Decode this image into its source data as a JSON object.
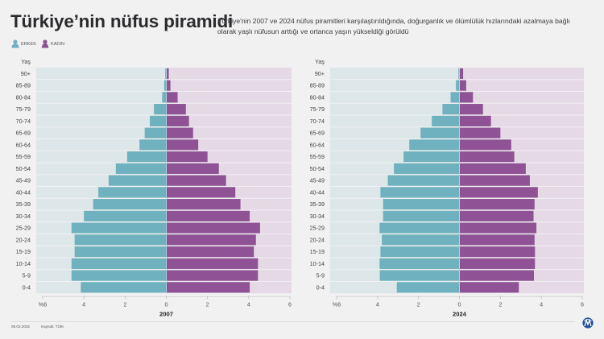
{
  "header": {
    "title": "Türkiye’nin nüfus piramidi",
    "subtitle": "Türkiye'nin 2007 ve 2024 nüfus piramitleri karşılaştırıldığında, doğurganlık ve ölümlülük hızlarındaki azalmaya bağlı olarak yaşlı nüfusun arttığı ve ortanca yaşın yükseldiği görüldü"
  },
  "legend": [
    {
      "label": "ERKEK",
      "icon": "male-person-icon",
      "color": "#6fb1be"
    },
    {
      "label": "KADIN",
      "icon": "female-person-icon",
      "color": "#8e4f94"
    }
  ],
  "colors": {
    "male": "#6fb1be",
    "female": "#8e5295",
    "male_bg": "#dde6e8",
    "female_bg": "#e6d9e6",
    "divider": "#a9d7de",
    "brand": "#1f4e9a"
  },
  "chart_data": [
    {
      "type": "bar",
      "orientation": "horizontal-pyramid",
      "title": "2007",
      "xlabel": "2007",
      "ylabel": "Yaş",
      "xlim": [
        -6,
        6
      ],
      "x_ticks": [
        "%6",
        "4",
        "2",
        "0",
        "2",
        "4",
        "6"
      ],
      "categories": [
        "90+",
        "85-89",
        "80-84",
        "75-79",
        "70-74",
        "65-69",
        "60-64",
        "55-59",
        "50-54",
        "45-49",
        "40-44",
        "35-39",
        "30-34",
        "25-29",
        "20-24",
        "15-19",
        "10-14",
        "5-9",
        "0-4"
      ],
      "series": [
        {
          "name": "ERKEK",
          "values": [
            0.05,
            0.1,
            0.2,
            0.6,
            0.8,
            1.05,
            1.3,
            1.9,
            2.45,
            2.8,
            3.3,
            3.55,
            4.0,
            4.6,
            4.45,
            4.45,
            4.6,
            4.6,
            4.15
          ]
        },
        {
          "name": "KADIN",
          "values": [
            0.12,
            0.2,
            0.55,
            0.95,
            1.1,
            1.3,
            1.55,
            2.0,
            2.55,
            2.9,
            3.35,
            3.6,
            4.05,
            4.55,
            4.35,
            4.25,
            4.45,
            4.45,
            4.05
          ]
        }
      ],
      "grid": true,
      "legend": "top-left"
    },
    {
      "type": "bar",
      "orientation": "horizontal-pyramid",
      "title": "2024",
      "xlabel": "2024",
      "ylabel": "Yaş",
      "xlim": [
        -6,
        6
      ],
      "x_ticks": [
        "%6",
        "4",
        "2",
        "0",
        "2",
        "4",
        "6"
      ],
      "categories": [
        "90+",
        "85-89",
        "80-84",
        "75-79",
        "70-74",
        "65-69",
        "60-64",
        "55-59",
        "50-54",
        "45-49",
        "40-44",
        "35-39",
        "30-34",
        "25-29",
        "20-24",
        "15-19",
        "10-14",
        "5-9",
        "0-4"
      ],
      "series": [
        {
          "name": "ERKEK",
          "values": [
            0.05,
            0.17,
            0.43,
            0.83,
            1.35,
            1.9,
            2.45,
            2.73,
            3.2,
            3.5,
            3.86,
            3.73,
            3.73,
            3.9,
            3.79,
            3.86,
            3.9,
            3.89,
            3.06
          ]
        },
        {
          "name": "KADIN",
          "values": [
            0.18,
            0.33,
            0.66,
            1.15,
            1.54,
            2.0,
            2.53,
            2.68,
            3.24,
            3.44,
            3.83,
            3.67,
            3.62,
            3.76,
            3.67,
            3.69,
            3.69,
            3.64,
            2.9
          ]
        }
      ],
      "grid": true,
      "legend": "top-left"
    }
  ],
  "footer": {
    "date": "06.02.2025",
    "source": "Kaynak: TÜİK"
  },
  "logo": {
    "name": "AA",
    "icon": "aa-logo-icon"
  }
}
